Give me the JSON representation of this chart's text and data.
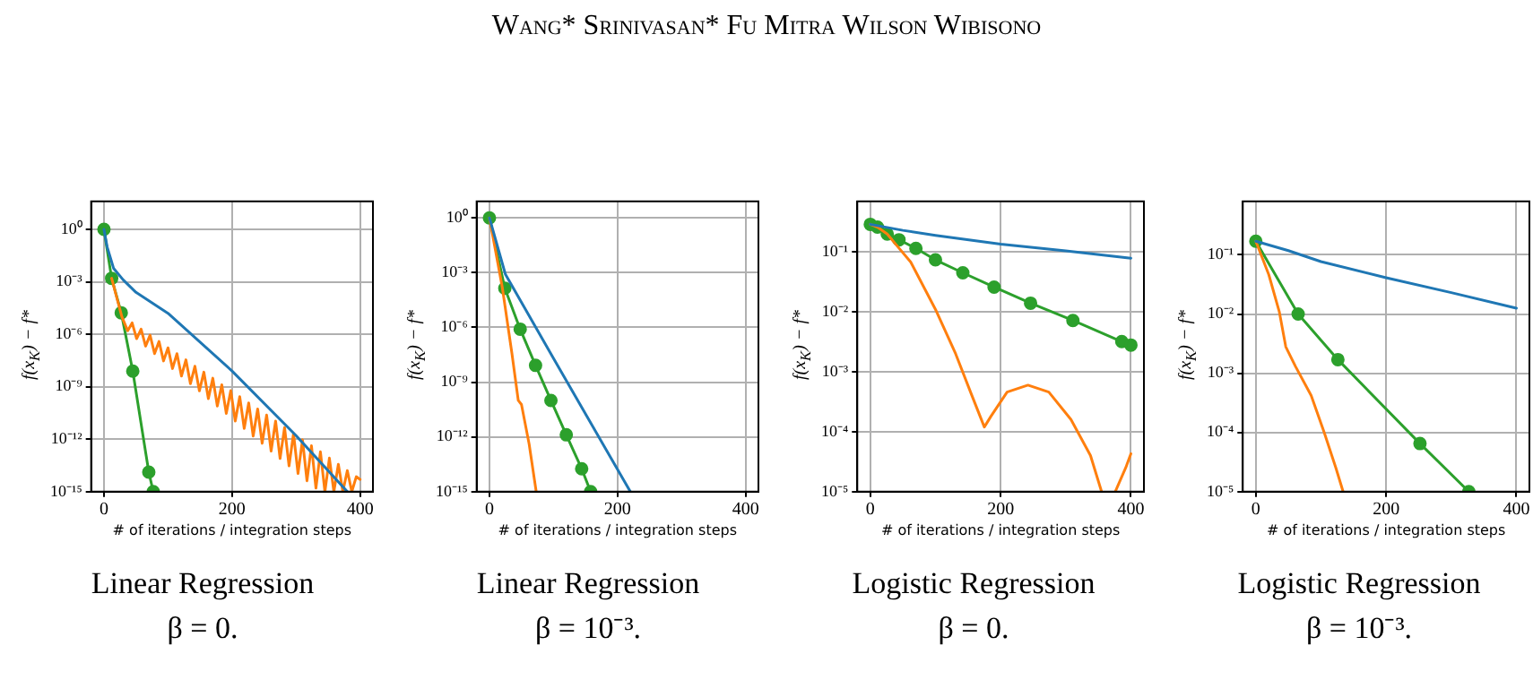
{
  "chart_data": [
    {
      "type": "other",
      "title": "Wang* Srinivasan* Fu Mitra Wilson Wibisono"
    },
    {
      "type": "line",
      "title": "Linear Regression",
      "subtitle": "β = 0.",
      "xlabel": "# of iterations / integration steps",
      "ylabel": "f(x$_{K}$) − f*",
      "log": "y",
      "grid": true,
      "xlim": [
        -20,
        420
      ],
      "xticks": [
        0,
        200,
        400
      ],
      "ylim": [
        1e-15,
        40
      ],
      "yticks": [
        {
          "value": 1,
          "label": "10⁰"
        },
        {
          "value": 0.001,
          "label": "10⁻³"
        },
        {
          "value": 1e-06,
          "label": "10⁻⁶"
        },
        {
          "value": 1e-09,
          "label": "10⁻⁹"
        },
        {
          "value": 1e-12,
          "label": "10⁻¹²"
        },
        {
          "value": 1e-15,
          "label": "10⁻¹⁵"
        }
      ],
      "series": [
        {
          "color": "#1f77b4",
          "marker": "none",
          "x": [
            0,
            5,
            15,
            30,
            50,
            100,
            200,
            300,
            380
          ],
          "values": [
            1,
            0.1,
            0.006,
            0.0013,
            0.00025,
            1.6e-05,
            8e-09,
            1.6e-12,
            1e-15
          ]
        },
        {
          "color": "#ff7f0e",
          "marker": "none",
          "x": [
            12,
            28,
            37,
            44,
            51,
            58,
            65,
            72,
            79,
            86,
            93,
            100,
            107,
            114,
            121,
            128,
            135,
            142,
            149,
            156,
            163,
            170,
            177,
            184,
            191,
            198,
            205,
            212,
            219,
            226,
            233,
            240,
            247,
            254,
            261,
            268,
            275,
            282,
            289,
            296,
            303,
            310,
            317,
            324,
            331,
            338,
            345,
            352,
            359,
            366,
            373,
            380,
            387,
            394,
            400
          ],
          "values": [
            0.0016,
            1e-05,
            1.6e-06,
            4.5e-06,
            5.6e-07,
            2e-06,
            2.1e-07,
            8.9e-07,
            7.9e-08,
            3.9e-07,
            3e-08,
            1.7e-07,
            1.1e-08,
            7.8e-08,
            4.1e-09,
            3.5e-08,
            1.5e-09,
            1.5e-08,
            5.8e-10,
            6.9e-09,
            2.1e-10,
            3.1e-09,
            7.9e-11,
            1.3e-09,
            3e-11,
            6e-10,
            1.1e-11,
            2.7e-10,
            4.1e-12,
            1.2e-10,
            1.5e-12,
            5.4e-11,
            5.8e-13,
            2.4e-11,
            2.1e-13,
            1.1e-11,
            7.9e-14,
            4.7e-12,
            3e-14,
            2.1e-12,
            1.1e-14,
            9.3e-13,
            4.2e-15,
            4.2e-13,
            1.6e-15,
            1.9e-13,
            1e-15,
            8.3e-14,
            1e-15,
            3.7e-14,
            1e-15,
            1.6e-14,
            1e-15,
            7.2e-15,
            5e-15
          ]
        },
        {
          "color": "#2ca02c",
          "marker": "circle",
          "x": [
            0,
            12,
            27,
            45,
            70,
            77
          ],
          "values": [
            1,
            0.0016,
            1.7e-05,
            7.9e-09,
            1.3e-14,
            1e-15
          ]
        }
      ]
    },
    {
      "type": "line",
      "title": "Linear Regression",
      "subtitle": "β = 10⁻³.",
      "xlabel": "# of iterations / integration steps",
      "ylabel": "f(x$_{K}$) − f*",
      "log": "y",
      "grid": true,
      "xlim": [
        -20,
        420
      ],
      "xticks": [
        0,
        200,
        400
      ],
      "ylim": [
        1e-15,
        8
      ],
      "yticks": [
        {
          "value": 1,
          "label": "10⁰"
        },
        {
          "value": 0.001,
          "label": "10⁻³"
        },
        {
          "value": 1e-06,
          "label": "10⁻⁶"
        },
        {
          "value": 1e-09,
          "label": "10⁻⁹"
        },
        {
          "value": 1e-12,
          "label": "10⁻¹²"
        },
        {
          "value": 1e-15,
          "label": "10⁻¹⁵"
        }
      ],
      "series": [
        {
          "color": "#1f77b4",
          "marker": "none",
          "x": [
            0,
            25,
            100,
            220
          ],
          "values": [
            1,
            0.0008,
            2e-08,
            1e-15
          ]
        },
        {
          "color": "#ff7f0e",
          "marker": "none",
          "x": [
            0,
            20,
            35,
            45,
            50,
            62,
            73
          ],
          "values": [
            1,
            0.00016,
            4e-08,
            1e-10,
            6e-11,
            4e-13,
            1e-15
          ]
        },
        {
          "color": "#2ca02c",
          "marker": "circle",
          "x": [
            0,
            24,
            48,
            72,
            96,
            120,
            144,
            158
          ],
          "values": [
            1,
            0.00014,
            8e-07,
            8.3e-09,
            1e-10,
            1.3e-12,
            1.8e-14,
            1e-15
          ]
        }
      ]
    },
    {
      "type": "line",
      "title": "Logistic Regression",
      "subtitle": "β = 0.",
      "xlabel": "# of iterations / integration steps",
      "ylabel": "f(x$_{K}$) − f*",
      "log": "y",
      "grid": true,
      "xlim": [
        -20,
        420
      ],
      "xticks": [
        0,
        200,
        400
      ],
      "ylim": [
        1e-05,
        0.7
      ],
      "yticks": [
        {
          "value": 0.1,
          "label": "10⁻¹"
        },
        {
          "value": 0.01,
          "label": "10⁻²"
        },
        {
          "value": 0.001,
          "label": "10⁻³"
        },
        {
          "value": 0.0001,
          "label": "10⁻⁴"
        },
        {
          "value": 1e-05,
          "label": "10⁻⁵"
        }
      ],
      "series": [
        {
          "color": "#1f77b4",
          "marker": "none",
          "x": [
            0,
            50,
            100,
            200,
            300,
            400
          ],
          "values": [
            0.29,
            0.23,
            0.19,
            0.135,
            0.105,
            0.079
          ]
        },
        {
          "color": "#ff7f0e",
          "marker": "none",
          "x": [
            0,
            11,
            26,
            39,
            62,
            101,
            131,
            156,
            175,
            185,
            210,
            242,
            274,
            308,
            338,
            355,
            365,
            376,
            392,
            400
          ],
          "values": [
            0.29,
            0.26,
            0.2,
            0.135,
            0.068,
            0.0105,
            0.002,
            0.0004,
            0.00012,
            0.00018,
            0.00046,
            0.0006,
            0.00046,
            0.00016,
            4e-05,
            1e-05,
            null,
            1e-05,
            2.5e-05,
            4.3e-05
          ]
        },
        {
          "color": "#2ca02c",
          "marker": "circle",
          "x": [
            0,
            11,
            26,
            44,
            70,
            100,
            142,
            190,
            246,
            311,
            386,
            400
          ],
          "values": [
            0.29,
            0.26,
            0.2,
            0.16,
            0.115,
            0.074,
            0.045,
            0.026,
            0.014,
            0.0072,
            0.0032,
            0.0028
          ]
        }
      ]
    },
    {
      "type": "line",
      "title": "Logistic Regression",
      "subtitle": "β = 10⁻³.",
      "xlabel": "# of iterations / integration steps",
      "ylabel": "f(x$_{K}$) − f*",
      "log": "y",
      "grid": true,
      "xlim": [
        -20,
        420
      ],
      "xticks": [
        0,
        200,
        400
      ],
      "ylim": [
        1e-05,
        0.8
      ],
      "yticks": [
        {
          "value": 0.1,
          "label": "10⁻¹"
        },
        {
          "value": 0.01,
          "label": "10⁻²"
        },
        {
          "value": 0.001,
          "label": "10⁻³"
        },
        {
          "value": 0.0001,
          "label": "10⁻⁴"
        },
        {
          "value": 1e-05,
          "label": "10⁻⁵"
        }
      ],
      "series": [
        {
          "color": "#1f77b4",
          "marker": "none",
          "x": [
            0,
            50,
            100,
            200,
            300,
            400
          ],
          "values": [
            0.17,
            0.118,
            0.077,
            0.041,
            0.023,
            0.0126
          ]
        },
        {
          "color": "#ff7f0e",
          "marker": "none",
          "x": [
            0,
            20,
            36,
            46,
            61,
            85,
            105,
            123,
            134
          ],
          "values": [
            0.17,
            0.046,
            0.011,
            0.0028,
            0.0013,
            0.00042,
            0.0001,
            2.5e-05,
            1e-05
          ]
        },
        {
          "color": "#2ca02c",
          "marker": "circle",
          "x": [
            0,
            65,
            126,
            252,
            327
          ],
          "values": [
            0.17,
            0.01,
            0.0017,
            6.5e-05,
            1e-05
          ]
        }
      ]
    }
  ]
}
